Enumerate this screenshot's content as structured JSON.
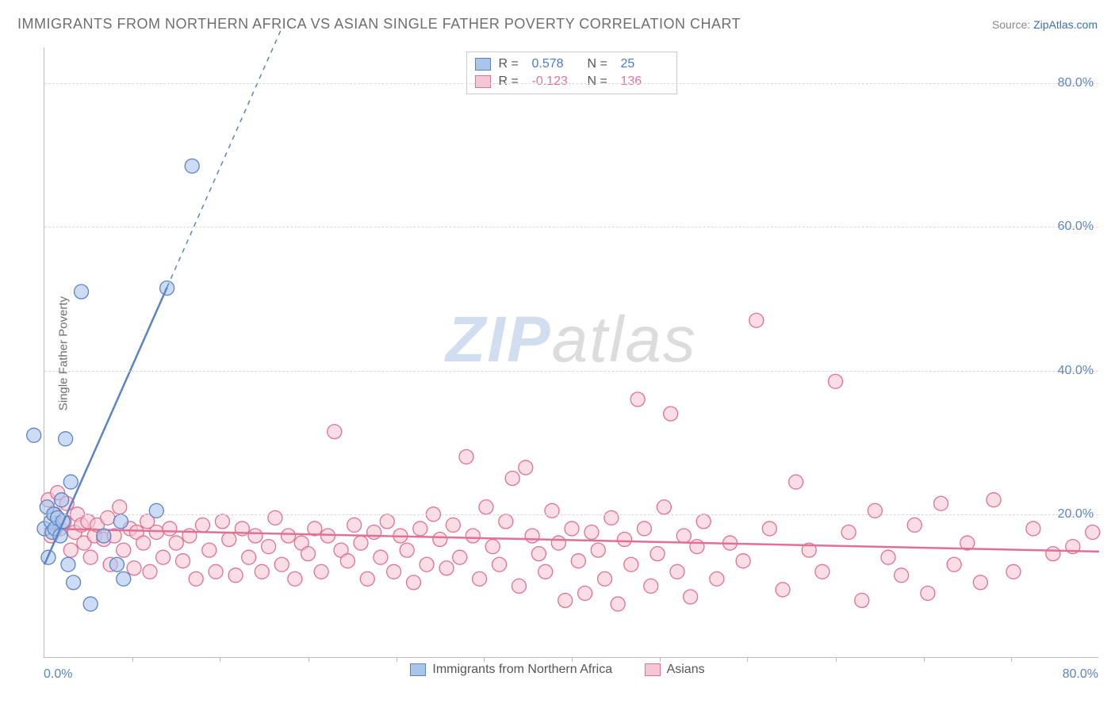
{
  "title": "IMMIGRANTS FROM NORTHERN AFRICA VS ASIAN SINGLE FATHER POVERTY CORRELATION CHART",
  "source_prefix": "Source: ",
  "source_link": "ZipAtlas.com",
  "ylabel": "Single Father Poverty",
  "watermark": {
    "part1": "ZIP",
    "part2": "atlas"
  },
  "chart": {
    "type": "scatter",
    "background_color": "#ffffff",
    "grid_color": "#d9d9d9",
    "axis_color": "#bbbbbb",
    "tick_label_color": "#5b84c4",
    "xlim": [
      0,
      80
    ],
    "ylim": [
      0,
      85
    ],
    "y_ticks": [
      20,
      40,
      60,
      80
    ],
    "y_tick_labels": [
      "20.0%",
      "40.0%",
      "60.0%",
      "80.0%"
    ],
    "x_tick_labels": [
      "0.0%",
      "80.0%"
    ],
    "x_minor_ticks": [
      6.7,
      13.3,
      20,
      26.7,
      33.3,
      40,
      46.7,
      53.3,
      60,
      66.7,
      73.3
    ],
    "marker_radius": 9,
    "marker_stroke_width": 1.3,
    "marker_fill_opacity": 0.25,
    "series": [
      {
        "id": "blue",
        "label": "Immigrants from Northern Africa",
        "R_label": "R =",
        "R": "0.578",
        "N_label": "N =",
        "N": "25",
        "fill": "#a9c5ec",
        "stroke": "#5b84c4",
        "value_color": "#4a7bd0",
        "trend": {
          "slope": 4.15,
          "intercept": 13.0,
          "solid_xmax": 9.3,
          "dash_xmax": 18.0,
          "width": 2.5,
          "dash": "6 6"
        },
        "points": [
          [
            -0.8,
            31
          ],
          [
            0,
            18
          ],
          [
            0.2,
            21
          ],
          [
            0.3,
            14
          ],
          [
            0.5,
            19
          ],
          [
            0.6,
            17.5
          ],
          [
            0.7,
            20
          ],
          [
            0.8,
            18
          ],
          [
            1.0,
            19.5
          ],
          [
            1.2,
            17
          ],
          [
            1.3,
            22
          ],
          [
            1.4,
            19
          ],
          [
            1.6,
            30.5
          ],
          [
            1.8,
            13
          ],
          [
            2.0,
            24.5
          ],
          [
            2.2,
            10.5
          ],
          [
            2.8,
            51
          ],
          [
            3.5,
            7.5
          ],
          [
            4.5,
            17
          ],
          [
            5.5,
            13
          ],
          [
            5.8,
            19
          ],
          [
            6.0,
            11
          ],
          [
            8.5,
            20.5
          ],
          [
            9.3,
            51.5
          ],
          [
            11.2,
            68.5
          ]
        ]
      },
      {
        "id": "pink",
        "label": "Asians",
        "R_label": "R =",
        "R": "-0.123",
        "N_label": "N =",
        "N": "136",
        "fill": "#f7c6d4",
        "stroke": "#e27095",
        "value_color": "#e86f9a",
        "trend": {
          "slope": -0.04,
          "intercept": 18.0,
          "solid_xmax": 80,
          "dash_xmax": 80,
          "width": 2.5,
          "dash": ""
        },
        "points": [
          [
            0.3,
            22
          ],
          [
            0.5,
            17
          ],
          [
            0.8,
            20
          ],
          [
            1.0,
            23
          ],
          [
            1.2,
            18
          ],
          [
            1.5,
            19
          ],
          [
            1.7,
            21.5
          ],
          [
            2.0,
            15
          ],
          [
            2.3,
            17.5
          ],
          [
            2.5,
            20
          ],
          [
            2.8,
            18.5
          ],
          [
            3.0,
            16
          ],
          [
            3.3,
            19
          ],
          [
            3.5,
            14
          ],
          [
            3.8,
            17
          ],
          [
            4.0,
            18.5
          ],
          [
            4.5,
            16.5
          ],
          [
            4.8,
            19.5
          ],
          [
            5.0,
            13
          ],
          [
            5.3,
            17
          ],
          [
            5.7,
            21
          ],
          [
            6.0,
            15
          ],
          [
            6.5,
            18
          ],
          [
            6.8,
            12.5
          ],
          [
            7.0,
            17.5
          ],
          [
            7.5,
            16
          ],
          [
            7.8,
            19
          ],
          [
            8.0,
            12
          ],
          [
            8.5,
            17.5
          ],
          [
            9.0,
            14
          ],
          [
            9.5,
            18
          ],
          [
            10,
            16
          ],
          [
            10.5,
            13.5
          ],
          [
            11,
            17
          ],
          [
            11.5,
            11
          ],
          [
            12,
            18.5
          ],
          [
            12.5,
            15
          ],
          [
            13,
            12
          ],
          [
            13.5,
            19
          ],
          [
            14,
            16.5
          ],
          [
            14.5,
            11.5
          ],
          [
            15,
            18
          ],
          [
            15.5,
            14
          ],
          [
            16,
            17
          ],
          [
            16.5,
            12
          ],
          [
            17,
            15.5
          ],
          [
            17.5,
            19.5
          ],
          [
            18,
            13
          ],
          [
            18.5,
            17
          ],
          [
            19,
            11
          ],
          [
            19.5,
            16
          ],
          [
            20,
            14.5
          ],
          [
            20.5,
            18
          ],
          [
            21,
            12
          ],
          [
            21.5,
            17
          ],
          [
            22,
            31.5
          ],
          [
            22.5,
            15
          ],
          [
            23,
            13.5
          ],
          [
            23.5,
            18.5
          ],
          [
            24,
            16
          ],
          [
            24.5,
            11
          ],
          [
            25,
            17.5
          ],
          [
            25.5,
            14
          ],
          [
            26,
            19
          ],
          [
            26.5,
            12
          ],
          [
            27,
            17
          ],
          [
            27.5,
            15
          ],
          [
            28,
            10.5
          ],
          [
            28.5,
            18
          ],
          [
            29,
            13
          ],
          [
            29.5,
            20
          ],
          [
            30,
            16.5
          ],
          [
            30.5,
            12.5
          ],
          [
            31,
            18.5
          ],
          [
            31.5,
            14
          ],
          [
            32,
            28
          ],
          [
            32.5,
            17
          ],
          [
            33,
            11
          ],
          [
            33.5,
            21
          ],
          [
            34,
            15.5
          ],
          [
            34.5,
            13
          ],
          [
            35,
            19
          ],
          [
            35.5,
            25
          ],
          [
            36,
            10
          ],
          [
            36.5,
            26.5
          ],
          [
            37,
            17
          ],
          [
            37.5,
            14.5
          ],
          [
            38,
            12
          ],
          [
            38.5,
            20.5
          ],
          [
            39,
            16
          ],
          [
            39.5,
            8
          ],
          [
            40,
            18
          ],
          [
            40.5,
            13.5
          ],
          [
            41,
            9
          ],
          [
            41.5,
            17.5
          ],
          [
            42,
            15
          ],
          [
            42.5,
            11
          ],
          [
            43,
            19.5
          ],
          [
            43.5,
            7.5
          ],
          [
            44,
            16.5
          ],
          [
            44.5,
            13
          ],
          [
            45,
            36
          ],
          [
            45.5,
            18
          ],
          [
            46,
            10
          ],
          [
            46.5,
            14.5
          ],
          [
            47,
            21
          ],
          [
            47.5,
            34
          ],
          [
            48,
            12
          ],
          [
            48.5,
            17
          ],
          [
            49,
            8.5
          ],
          [
            49.5,
            15.5
          ],
          [
            50,
            19
          ],
          [
            51,
            11
          ],
          [
            52,
            16
          ],
          [
            53,
            13.5
          ],
          [
            54,
            47
          ],
          [
            55,
            18
          ],
          [
            56,
            9.5
          ],
          [
            57,
            24.5
          ],
          [
            58,
            15
          ],
          [
            59,
            12
          ],
          [
            60,
            38.5
          ],
          [
            61,
            17.5
          ],
          [
            62,
            8
          ],
          [
            63,
            20.5
          ],
          [
            64,
            14
          ],
          [
            65,
            11.5
          ],
          [
            66,
            18.5
          ],
          [
            67,
            9
          ],
          [
            68,
            21.5
          ],
          [
            69,
            13
          ],
          [
            70,
            16
          ],
          [
            71,
            10.5
          ],
          [
            72,
            22
          ],
          [
            73.5,
            12
          ],
          [
            75,
            18
          ],
          [
            76.5,
            14.5
          ],
          [
            78,
            15.5
          ],
          [
            79.5,
            17.5
          ]
        ]
      }
    ]
  },
  "legend_bottom": [
    {
      "label": "Immigrants from Northern Africa",
      "fill": "#a9c5ec",
      "stroke": "#5b84c4"
    },
    {
      "label": "Asians",
      "fill": "#f7c6d4",
      "stroke": "#e27095"
    }
  ]
}
